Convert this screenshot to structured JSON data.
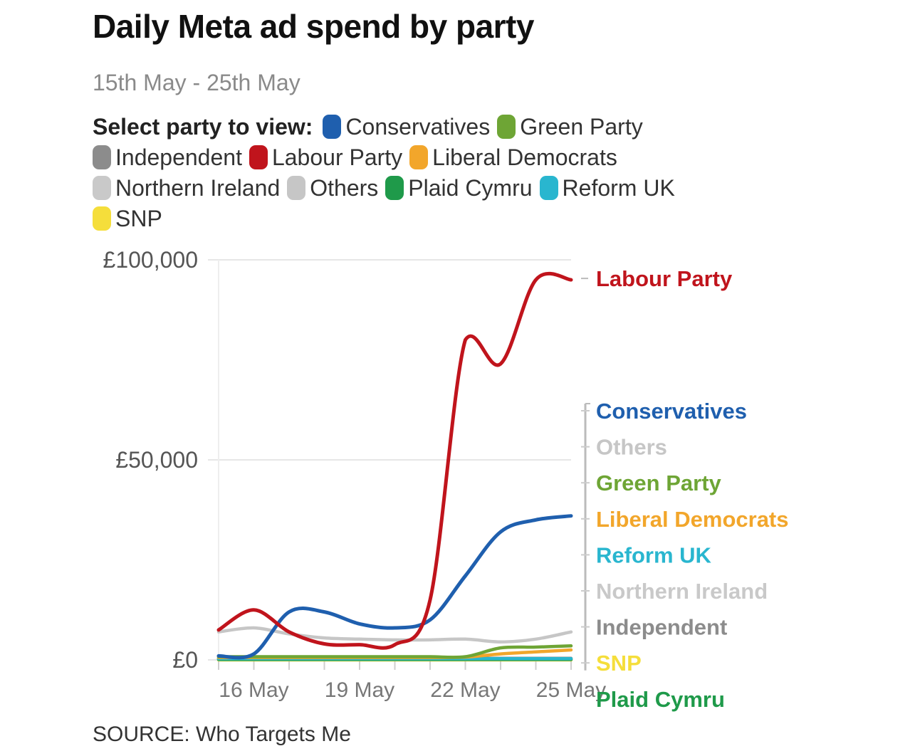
{
  "header": {
    "title": "Daily Meta ad spend by party",
    "subtitle": "15th May - 25th May"
  },
  "legend": {
    "label": "Select party to view:"
  },
  "source": "SOURCE: Who Targets Me",
  "colors": {
    "Conservatives": "#1f5fae",
    "Green Party": "#6ea535",
    "Independent": "#8c8c8c",
    "Labour Party": "#c0141c",
    "Liberal Democrats": "#f2a62b",
    "Northern Ireland": "#c9c9c9",
    "Others": "#c6c6c6",
    "Plaid Cymru": "#1f9a4a",
    "Reform UK": "#29b6cf",
    "SNP": "#f5de3b"
  },
  "chart_data": {
    "type": "line",
    "title": "Daily Meta ad spend by party",
    "subtitle": "15th May - 25th May",
    "xlabel": "",
    "ylabel": "",
    "x": [
      "15 May",
      "16 May",
      "17 May",
      "18 May",
      "19 May",
      "20 May",
      "21 May",
      "22 May",
      "23 May",
      "24 May",
      "25 May"
    ],
    "x_ticks": [
      "16 May",
      "19 May",
      "22 May",
      "25 May"
    ],
    "y_ticks": [
      "£0",
      "£50,000",
      "£100,000"
    ],
    "ylim": [
      0,
      100000
    ],
    "legend_order": [
      "Conservatives",
      "Green Party",
      "Independent",
      "Labour Party",
      "Liberal Democrats",
      "Northern Ireland",
      "Others",
      "Plaid Cymru",
      "Reform UK",
      "SNP"
    ],
    "end_label_order": [
      "Labour Party",
      "Conservatives",
      "Others",
      "Green Party",
      "Liberal Democrats",
      "Reform UK",
      "Northern Ireland",
      "Independent",
      "SNP",
      "Plaid Cymru"
    ],
    "series": [
      {
        "name": "Others",
        "values": [
          7000,
          8000,
          6500,
          5500,
          5200,
          5000,
          5000,
          5200,
          4500,
          5200,
          7000
        ]
      },
      {
        "name": "Northern Ireland",
        "values": [
          200,
          200,
          200,
          200,
          200,
          200,
          200,
          200,
          200,
          200,
          200
        ]
      },
      {
        "name": "Independent",
        "values": [
          400,
          400,
          400,
          400,
          400,
          400,
          400,
          400,
          400,
          400,
          400
        ]
      },
      {
        "name": "SNP",
        "values": [
          0,
          0,
          0,
          0,
          0,
          0,
          0,
          0,
          0,
          0,
          0
        ]
      },
      {
        "name": "Plaid Cymru",
        "values": [
          100,
          100,
          100,
          100,
          100,
          100,
          100,
          100,
          100,
          100,
          100
        ]
      },
      {
        "name": "Reform UK",
        "values": [
          300,
          300,
          300,
          300,
          300,
          300,
          300,
          300,
          300,
          300,
          300
        ]
      },
      {
        "name": "Liberal Democrats",
        "values": [
          600,
          600,
          600,
          600,
          600,
          600,
          600,
          700,
          1500,
          2000,
          2500
        ]
      },
      {
        "name": "Green Party",
        "values": [
          800,
          800,
          800,
          800,
          800,
          800,
          800,
          800,
          3000,
          3200,
          3500
        ]
      },
      {
        "name": "Conservatives",
        "values": [
          1000,
          1500,
          12000,
          12000,
          9000,
          8000,
          10000,
          21000,
          32000,
          35000,
          36000
        ]
      },
      {
        "name": "Labour Party",
        "values": [
          7500,
          12500,
          7000,
          4000,
          3800,
          3800,
          15000,
          80000,
          74000,
          95000,
          95000
        ]
      }
    ]
  }
}
